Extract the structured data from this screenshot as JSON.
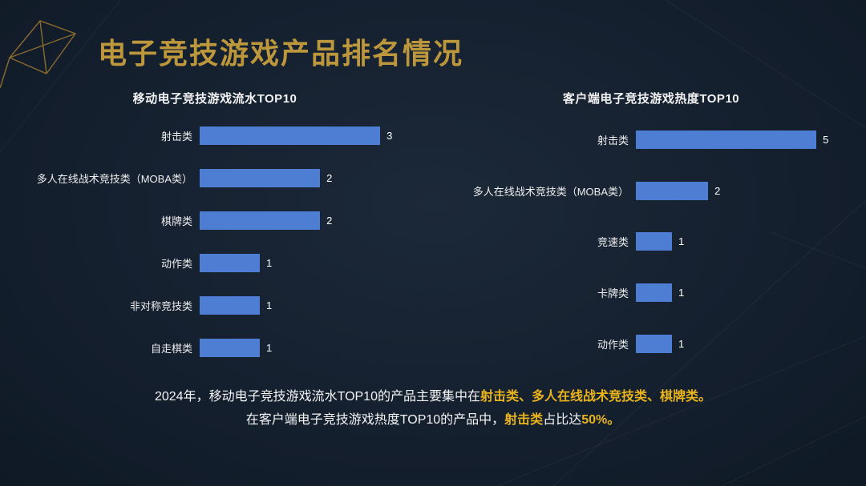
{
  "page": {
    "title": "电子竞技游戏产品排名情况",
    "background": "#15202f",
    "accent_gold": "#bd973c",
    "highlight_gold": "#e9b31d",
    "bar_color": "#4d7ed3"
  },
  "chart_data": [
    {
      "type": "bar",
      "orientation": "horizontal",
      "title": "移动电子竞技游戏流水TOP10",
      "categories": [
        "射击类",
        "多人在线战术竞技类（MOBA类）",
        "棋牌类",
        "动作类",
        "非对称竞技类",
        "自走棋类"
      ],
      "values": [
        3,
        2,
        2,
        1,
        1,
        1
      ],
      "xlim": [
        0,
        3
      ],
      "grid": false,
      "legend": "none",
      "value_labels": true
    },
    {
      "type": "bar",
      "orientation": "horizontal",
      "title": "客户端电子竞技游戏热度TOP10",
      "categories": [
        "射击类",
        "多人在线战术竞技类（MOBA类）",
        "竞速类",
        "卡牌类",
        "动作类"
      ],
      "values": [
        5,
        2,
        1,
        1,
        1
      ],
      "xlim": [
        0,
        5
      ],
      "grid": false,
      "legend": "none",
      "value_labels": true
    }
  ],
  "footer": {
    "line1": [
      {
        "text": "2024年，移动电子竞技游戏流水TOP10的产品主要集中在",
        "highlight": false
      },
      {
        "text": "射击类、多人在线战术竞技类、棋牌类。",
        "highlight": true
      }
    ],
    "line2": [
      {
        "text": "在客户端电子竞技游戏热度TOP10的产品中，",
        "highlight": false
      },
      {
        "text": "射击类",
        "highlight": true
      },
      {
        "text": "占比达",
        "highlight": false
      },
      {
        "text": "50%。",
        "highlight": true
      }
    ]
  }
}
